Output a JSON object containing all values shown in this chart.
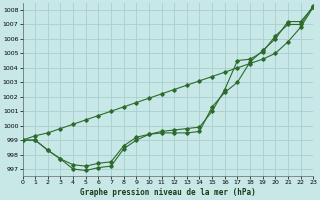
{
  "title": "Graphe pression niveau de la mer (hPa)",
  "bg_color": "#c8e8e8",
  "grid_color": "#a8cece",
  "line_color": "#2d6a2d",
  "xlim": [
    0,
    23
  ],
  "ylim": [
    996.5,
    1008.5
  ],
  "yticks": [
    997,
    998,
    999,
    1000,
    1001,
    1002,
    1003,
    1004,
    1005,
    1006,
    1007,
    1008
  ],
  "xticks": [
    0,
    1,
    2,
    3,
    4,
    5,
    6,
    7,
    8,
    9,
    10,
    11,
    12,
    13,
    14,
    15,
    16,
    17,
    18,
    19,
    20,
    21,
    22,
    23
  ],
  "series_main": [
    999.0,
    999.0,
    998.3,
    997.7,
    997.0,
    996.9,
    997.1,
    997.2,
    998.4,
    999.0,
    999.4,
    999.5,
    999.5,
    999.5,
    999.6,
    1001.3,
    1002.3,
    1003.0,
    1004.4,
    1005.2,
    1006.0,
    1007.2,
    1007.2,
    1008.2
  ],
  "series_high": [
    999.0,
    999.3,
    999.5,
    999.8,
    1000.1,
    1000.4,
    1000.7,
    1001.0,
    1001.3,
    1001.6,
    1001.9,
    1002.2,
    1002.5,
    1002.8,
    1003.1,
    1003.4,
    1003.7,
    1004.0,
    1004.3,
    1004.6,
    1005.0,
    1005.8,
    1006.8,
    1008.2
  ],
  "series_mid": [
    999.0,
    999.0,
    998.3,
    997.7,
    997.3,
    997.2,
    997.4,
    997.5,
    998.6,
    999.2,
    999.4,
    999.6,
    999.7,
    999.8,
    999.9,
    1001.0,
    1002.5,
    1004.5,
    1004.6,
    1005.1,
    1006.2,
    1007.0,
    1007.0,
    1008.3
  ]
}
